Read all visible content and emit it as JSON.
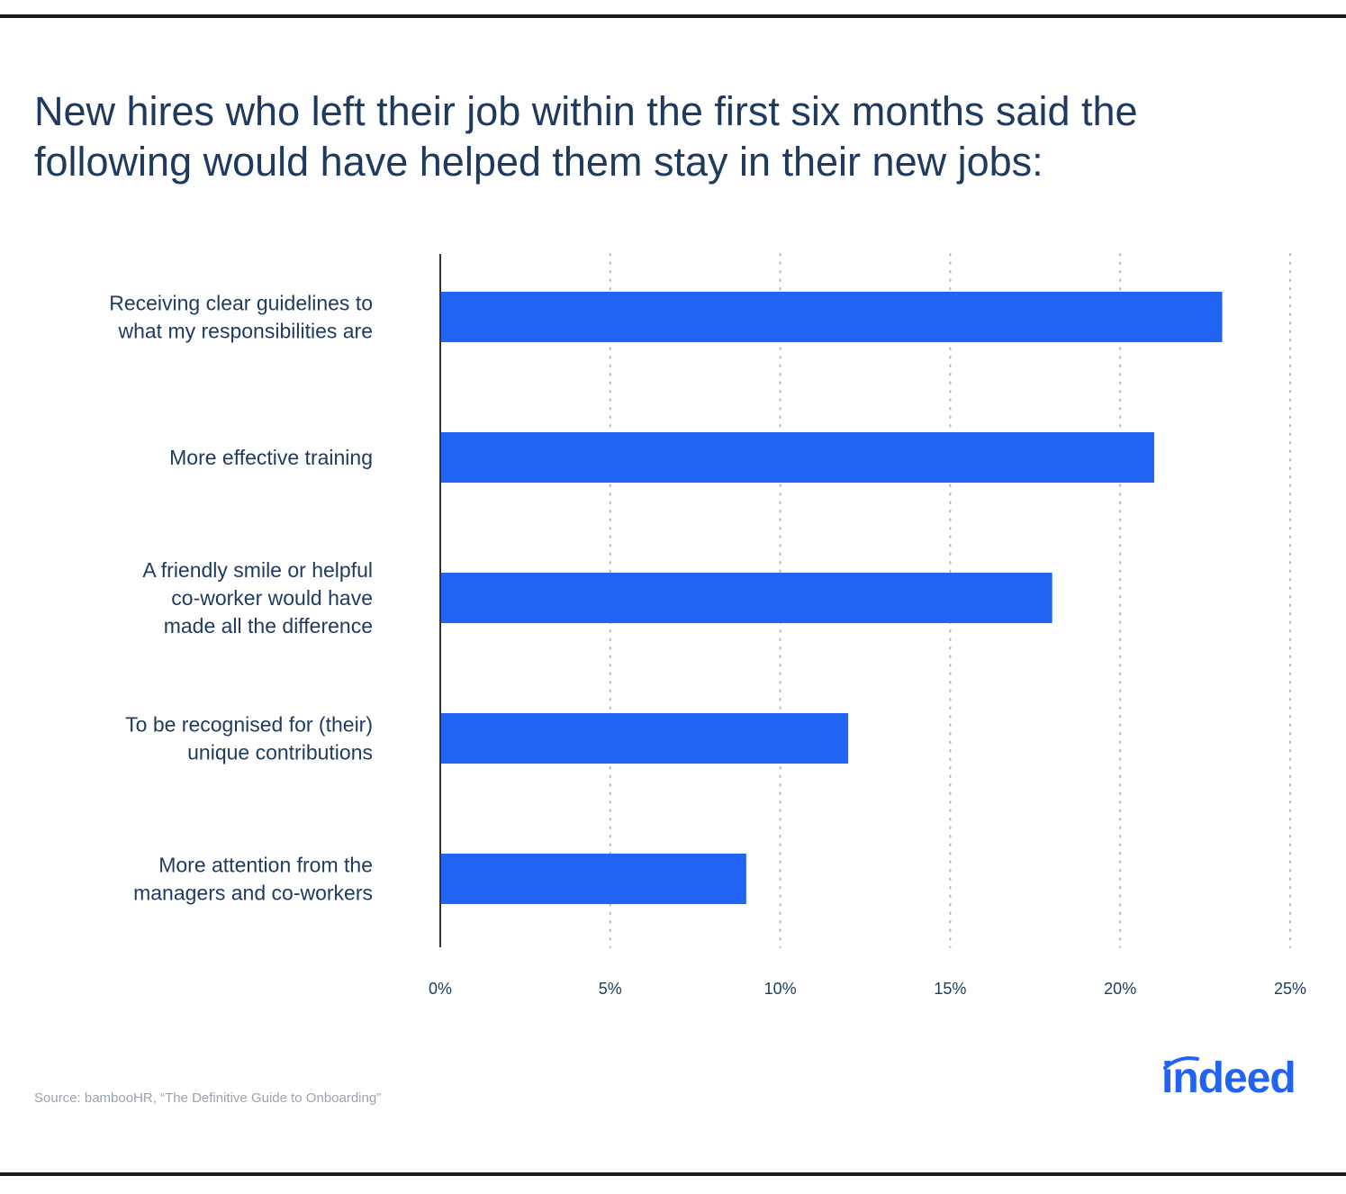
{
  "title_lines": [
    "New hires who left their job within the first six months said the",
    "following would have helped them stay in their new jobs:"
  ],
  "source": "Source: bambooHR, “The Definitive Guide to Onboarding”",
  "logo_text": "indeed",
  "colors": {
    "bar": "#2164f3",
    "text": "#1f3a5f",
    "grid": "#b8b8b8",
    "axis": "#333333"
  },
  "chart_data": {
    "type": "bar",
    "orientation": "horizontal",
    "categories": [
      [
        "Receiving clear guidelines to",
        "what my responsibilities are"
      ],
      [
        "More effective training"
      ],
      [
        "A friendly smile or helpful",
        "co-worker would have",
        "made all the difference"
      ],
      [
        "To be recognised for (their)",
        "unique contributions"
      ],
      [
        "More attention from the",
        "managers and co-workers"
      ]
    ],
    "values": [
      23,
      21,
      18,
      12,
      9
    ],
    "xlim": [
      0,
      25
    ],
    "xticks": [
      0,
      5,
      10,
      15,
      20,
      25
    ],
    "xtick_labels": [
      "0%",
      "5%",
      "10%",
      "15%",
      "20%",
      "25%"
    ],
    "grid": "vertical dotted",
    "legend": "none"
  }
}
